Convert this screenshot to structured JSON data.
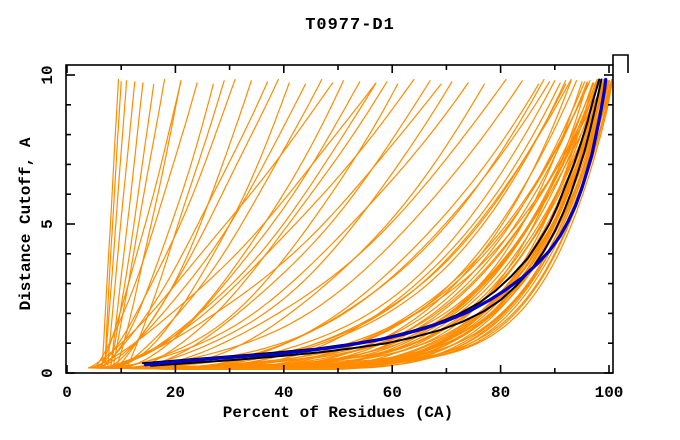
{
  "chart_data": {
    "type": "line",
    "title": "T0977-D1",
    "xlabel": "Percent of Residues (CA)",
    "ylabel": "Distance Cutoff, A",
    "x_axis": {
      "range": [
        0,
        100
      ],
      "major_ticks": [
        0,
        20,
        40,
        60,
        80,
        100
      ],
      "tick_labels": [
        "0",
        "20",
        "40",
        "60",
        "80",
        "100"
      ],
      "minor_tick_step": 10
    },
    "y_axis": {
      "range": [
        0,
        10
      ],
      "major_ticks": [
        0,
        5,
        10
      ],
      "tick_labels": [
        "0",
        "5",
        "10"
      ],
      "minor_tick_step": 1
    },
    "grid": false,
    "legend": "none",
    "frame": "full-box-inward-ticks-with-corner-notch",
    "colors": {
      "predictions": "#FF8C00",
      "reference": "#000000",
      "highlight": "#0000CC",
      "frame": "#000000",
      "background": "#FFFFFF"
    },
    "series": {
      "predictions": {
        "color_key": "predictions",
        "stroke_width": 1.2,
        "y_start": 0.17,
        "y_top": 9.85,
        "note": "each curve = [start_pct_at_bottom, pct_at_top_cutoff, shape_exponent]",
        "params": [
          [
            6.5,
            9.5,
            1.0
          ],
          [
            7,
            11,
            1.0
          ],
          [
            7.5,
            12.5,
            0.95
          ],
          [
            8,
            14,
            1.05
          ],
          [
            8,
            16,
            1.1
          ],
          [
            8.5,
            18,
            1.0
          ],
          [
            9,
            21,
            1.15
          ],
          [
            7,
            10,
            0.9
          ],
          [
            5,
            24,
            1.3
          ],
          [
            6,
            27,
            1.5
          ],
          [
            5,
            31,
            1.4
          ],
          [
            7,
            34,
            1.6
          ],
          [
            6,
            37,
            1.3
          ],
          [
            8,
            41,
            1.7
          ],
          [
            5,
            44,
            1.5
          ],
          [
            9,
            47,
            1.4
          ],
          [
            6,
            51,
            1.8
          ],
          [
            10,
            54,
            1.5
          ],
          [
            7,
            57,
            1.6
          ],
          [
            8,
            61,
            1.9
          ],
          [
            6,
            64,
            1.5
          ],
          [
            11,
            67,
            1.7
          ],
          [
            9,
            71,
            2.0
          ],
          [
            7,
            74,
            1.8
          ],
          [
            12,
            77,
            2.1
          ],
          [
            10,
            81,
            1.9
          ],
          [
            8,
            84,
            2.2
          ],
          [
            13,
            59,
            1.4
          ],
          [
            4,
            49,
            1.2
          ],
          [
            5,
            69,
            1.6
          ],
          [
            9,
            39,
            1.2
          ],
          [
            11,
            29,
            1.1
          ],
          [
            6,
            21,
            1.2
          ],
          [
            4,
            57,
            1.35
          ],
          [
            12,
            87,
            2.4
          ],
          [
            9,
            88,
            2.7
          ],
          [
            11,
            90,
            2.9
          ],
          [
            7,
            89,
            2.6
          ],
          [
            13,
            91,
            3.0
          ],
          [
            10,
            92,
            3.1
          ],
          [
            14,
            93,
            2.8
          ],
          [
            5,
            93,
            4.5
          ],
          [
            6,
            95,
            5.2
          ],
          [
            7,
            96,
            5.8
          ],
          [
            8,
            97,
            6.4
          ],
          [
            9,
            98,
            5.0
          ],
          [
            10,
            99,
            5.5
          ],
          [
            11,
            99.5,
            6.0
          ],
          [
            12,
            100,
            6.6
          ],
          [
            13,
            100.5,
            5.7
          ],
          [
            14,
            100.8,
            7.0
          ],
          [
            5,
            94,
            4.0
          ],
          [
            6,
            96,
            4.4
          ],
          [
            7,
            97.5,
            4.8
          ],
          [
            8,
            98.5,
            6.1
          ],
          [
            9,
            99.2,
            6.6
          ],
          [
            10,
            100,
            5.6
          ],
          [
            11,
            100.6,
            7.2
          ],
          [
            12,
            99.8,
            4.6
          ],
          [
            13,
            98.8,
            4.1
          ],
          [
            14,
            99.6,
            5.3
          ],
          [
            4,
            92,
            3.6
          ],
          [
            5,
            95.5,
            4.2
          ],
          [
            6,
            97,
            5.0
          ],
          [
            7,
            98,
            5.5
          ],
          [
            8,
            99,
            6.3
          ],
          [
            9,
            99.8,
            7.0
          ],
          [
            10,
            100.4,
            6.2
          ],
          [
            11,
            100.8,
            7.6
          ],
          [
            12,
            100.2,
            6.6
          ],
          [
            13,
            99.4,
            5.9
          ],
          [
            5,
            96.5,
            3.8
          ],
          [
            6,
            98.2,
            4.5
          ],
          [
            7,
            99.1,
            4.9
          ],
          [
            8,
            99.9,
            5.8
          ],
          [
            9,
            100.5,
            6.8
          ],
          [
            10,
            99.3,
            3.4
          ],
          [
            11,
            98.3,
            3.8
          ],
          [
            12,
            97.2,
            4.1
          ],
          [
            13,
            96.2,
            3.5
          ],
          [
            15,
            97.8,
            4.3
          ],
          [
            15,
            99.7,
            5.1
          ],
          [
            16,
            98.9,
            4.7
          ],
          [
            17,
            99.9,
            5.6
          ],
          [
            18,
            100.6,
            6.2
          ],
          [
            19,
            99.5,
            5.0
          ],
          [
            20,
            100.1,
            5.9
          ]
        ]
      },
      "references": {
        "color_key": "reference",
        "stroke_width": 2,
        "curves": [
          [
            [
              14,
              0.33
            ],
            [
              22,
              0.45
            ],
            [
              30,
              0.56
            ],
            [
              38,
              0.68
            ],
            [
              46,
              0.82
            ],
            [
              52,
              0.97
            ],
            [
              58,
              1.15
            ],
            [
              63,
              1.38
            ],
            [
              68,
              1.65
            ],
            [
              72,
              1.95
            ],
            [
              76,
              2.35
            ],
            [
              79,
              2.75
            ],
            [
              82,
              3.25
            ],
            [
              85,
              3.85
            ],
            [
              87,
              4.4
            ],
            [
              89,
              5.0
            ],
            [
              90.5,
              5.6
            ],
            [
              92,
              6.3
            ],
            [
              93.5,
              7.0
            ],
            [
              94.8,
              7.7
            ],
            [
              96,
              8.4
            ],
            [
              97,
              9.1
            ],
            [
              97.8,
              9.6
            ],
            [
              98.2,
              9.85
            ]
          ],
          [
            [
              15.5,
              0.24
            ],
            [
              23,
              0.34
            ],
            [
              31,
              0.44
            ],
            [
              39,
              0.56
            ],
            [
              47,
              0.7
            ],
            [
              53,
              0.84
            ],
            [
              59,
              1.0
            ],
            [
              64,
              1.2
            ],
            [
              69,
              1.45
            ],
            [
              73,
              1.72
            ],
            [
              77,
              2.08
            ],
            [
              80,
              2.45
            ],
            [
              83,
              2.95
            ],
            [
              86,
              3.55
            ],
            [
              88,
              4.1
            ],
            [
              90,
              4.75
            ],
            [
              91.5,
              5.35
            ],
            [
              93,
              6.05
            ],
            [
              94.3,
              6.75
            ],
            [
              95.5,
              7.45
            ],
            [
              96.5,
              8.15
            ],
            [
              97.4,
              8.85
            ],
            [
              98.2,
              9.5
            ],
            [
              98.6,
              9.85
            ]
          ]
        ]
      },
      "highlight": {
        "color_key": "highlight",
        "stroke_width": 3.2,
        "points": [
          [
            14.5,
            0.28
          ],
          [
            20,
            0.38
          ],
          [
            26,
            0.47
          ],
          [
            32,
            0.55
          ],
          [
            38,
            0.62
          ],
          [
            44,
            0.74
          ],
          [
            50,
            0.88
          ],
          [
            54,
            1.0
          ],
          [
            58,
            1.13
          ],
          [
            62,
            1.3
          ],
          [
            66,
            1.5
          ],
          [
            70,
            1.75
          ],
          [
            74,
            2.05
          ],
          [
            78,
            2.45
          ],
          [
            81,
            2.8
          ],
          [
            84,
            3.2
          ],
          [
            87,
            3.7
          ],
          [
            89,
            4.1
          ],
          [
            91,
            4.6
          ],
          [
            92.5,
            5.1
          ],
          [
            93.8,
            5.6
          ],
          [
            95,
            6.2
          ],
          [
            96,
            6.8
          ],
          [
            96.8,
            7.3
          ],
          [
            97.5,
            7.9
          ],
          [
            98.2,
            8.5
          ],
          [
            98.8,
            9.1
          ],
          [
            99.2,
            9.55
          ],
          [
            99.4,
            9.85
          ]
        ]
      }
    }
  }
}
